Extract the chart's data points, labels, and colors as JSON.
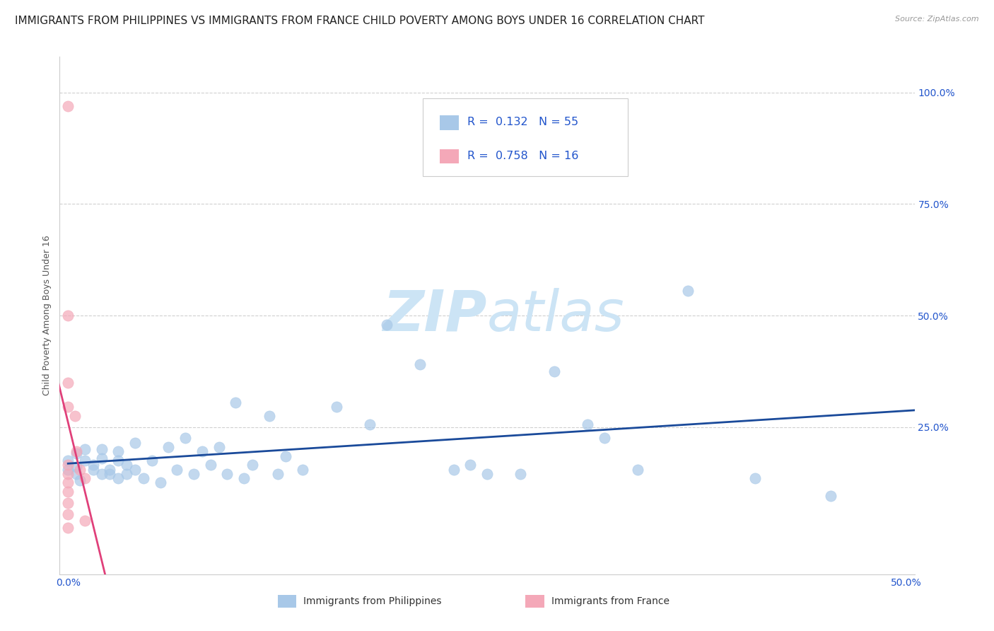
{
  "title": "IMMIGRANTS FROM PHILIPPINES VS IMMIGRANTS FROM FRANCE CHILD POVERTY AMONG BOYS UNDER 16 CORRELATION CHART",
  "source": "Source: ZipAtlas.com",
  "ylabel": "Child Poverty Among Boys Under 16",
  "xlim": [
    -0.005,
    0.505
  ],
  "ylim": [
    -0.08,
    1.08
  ],
  "xtick_labels": [
    "0.0%",
    "50.0%"
  ],
  "xtick_positions": [
    0.0,
    0.5
  ],
  "ytick_labels": [
    "100.0%",
    "75.0%",
    "50.0%",
    "25.0%"
  ],
  "ytick_positions": [
    1.0,
    0.75,
    0.5,
    0.25
  ],
  "philippines_color": "#a8c8e8",
  "france_color": "#f4a8b8",
  "philippines_line_color": "#1a4a9a",
  "france_line_color": "#e0407a",
  "R_philippines": 0.132,
  "N_philippines": 55,
  "R_france": 0.758,
  "N_france": 16,
  "legend_text_color": "#2255cc",
  "watermark_color": "#cce4f5",
  "philippines_points": [
    [
      0.0,
      0.175
    ],
    [
      0.0,
      0.155
    ],
    [
      0.005,
      0.19
    ],
    [
      0.005,
      0.16
    ],
    [
      0.005,
      0.145
    ],
    [
      0.007,
      0.13
    ],
    [
      0.01,
      0.2
    ],
    [
      0.01,
      0.175
    ],
    [
      0.015,
      0.165
    ],
    [
      0.015,
      0.155
    ],
    [
      0.02,
      0.145
    ],
    [
      0.02,
      0.2
    ],
    [
      0.02,
      0.18
    ],
    [
      0.025,
      0.155
    ],
    [
      0.025,
      0.145
    ],
    [
      0.03,
      0.135
    ],
    [
      0.03,
      0.195
    ],
    [
      0.03,
      0.175
    ],
    [
      0.035,
      0.165
    ],
    [
      0.035,
      0.145
    ],
    [
      0.04,
      0.215
    ],
    [
      0.04,
      0.155
    ],
    [
      0.045,
      0.135
    ],
    [
      0.05,
      0.175
    ],
    [
      0.055,
      0.125
    ],
    [
      0.06,
      0.205
    ],
    [
      0.065,
      0.155
    ],
    [
      0.07,
      0.225
    ],
    [
      0.075,
      0.145
    ],
    [
      0.08,
      0.195
    ],
    [
      0.085,
      0.165
    ],
    [
      0.09,
      0.205
    ],
    [
      0.095,
      0.145
    ],
    [
      0.1,
      0.305
    ],
    [
      0.105,
      0.135
    ],
    [
      0.11,
      0.165
    ],
    [
      0.12,
      0.275
    ],
    [
      0.125,
      0.145
    ],
    [
      0.13,
      0.185
    ],
    [
      0.14,
      0.155
    ],
    [
      0.16,
      0.295
    ],
    [
      0.18,
      0.255
    ],
    [
      0.19,
      0.48
    ],
    [
      0.21,
      0.39
    ],
    [
      0.23,
      0.155
    ],
    [
      0.24,
      0.165
    ],
    [
      0.25,
      0.145
    ],
    [
      0.27,
      0.145
    ],
    [
      0.29,
      0.375
    ],
    [
      0.31,
      0.255
    ],
    [
      0.32,
      0.225
    ],
    [
      0.34,
      0.155
    ],
    [
      0.37,
      0.555
    ],
    [
      0.41,
      0.135
    ],
    [
      0.455,
      0.095
    ]
  ],
  "france_points": [
    [
      0.0,
      0.97
    ],
    [
      0.0,
      0.5
    ],
    [
      0.0,
      0.35
    ],
    [
      0.0,
      0.295
    ],
    [
      0.0,
      0.165
    ],
    [
      0.0,
      0.145
    ],
    [
      0.0,
      0.125
    ],
    [
      0.0,
      0.105
    ],
    [
      0.0,
      0.08
    ],
    [
      0.0,
      0.055
    ],
    [
      0.0,
      0.025
    ],
    [
      0.004,
      0.275
    ],
    [
      0.005,
      0.195
    ],
    [
      0.007,
      0.155
    ],
    [
      0.01,
      0.135
    ],
    [
      0.01,
      0.04
    ]
  ],
  "philippines_marker_size": 120,
  "france_marker_size": 120,
  "bg_color": "#ffffff",
  "grid_color": "#d0d0d0",
  "title_fontsize": 11,
  "axis_label_fontsize": 9,
  "tick_fontsize": 10
}
